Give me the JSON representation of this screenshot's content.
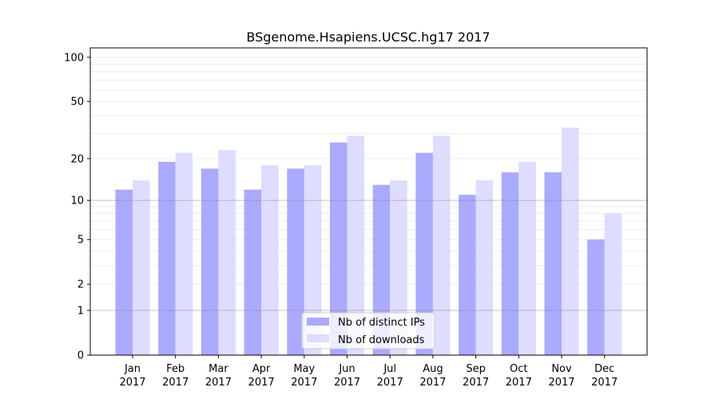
{
  "chart_data": {
    "type": "bar",
    "title": "BSgenome.Hsapiens.UCSC.hg17 2017",
    "xlabel": "",
    "ylabel": "",
    "yscale": "log(1+y)",
    "ylim": [
      0,
      116
    ],
    "yticks": [
      0,
      1,
      2,
      5,
      10,
      20,
      50,
      100
    ],
    "categories": [
      [
        "Jan",
        "2017"
      ],
      [
        "Feb",
        "2017"
      ],
      [
        "Mar",
        "2017"
      ],
      [
        "Apr",
        "2017"
      ],
      [
        "May",
        "2017"
      ],
      [
        "Jun",
        "2017"
      ],
      [
        "Jul",
        "2017"
      ],
      [
        "Aug",
        "2017"
      ],
      [
        "Sep",
        "2017"
      ],
      [
        "Oct",
        "2017"
      ],
      [
        "Nov",
        "2017"
      ],
      [
        "Dec",
        "2017"
      ]
    ],
    "series": [
      {
        "name": "Nb of distinct IPs",
        "color": "#aaaaff",
        "values": [
          12,
          19,
          17,
          12,
          17,
          26,
          13,
          22,
          11,
          16,
          16,
          5
        ]
      },
      {
        "name": "Nb of downloads",
        "color": "#ddddff",
        "values": [
          14,
          22,
          23,
          18,
          18,
          29,
          14,
          29,
          14,
          19,
          33,
          8
        ]
      }
    ],
    "grid": true,
    "legend": "bottom-center"
  }
}
